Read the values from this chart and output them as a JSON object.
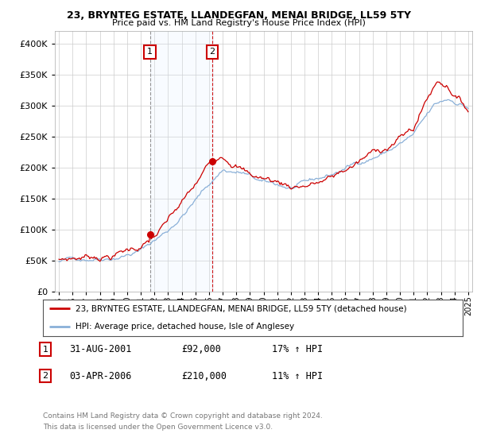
{
  "title": "23, BRYNTEG ESTATE, LLANDEGFAN, MENAI BRIDGE, LL59 5TY",
  "subtitle": "Price paid vs. HM Land Registry's House Price Index (HPI)",
  "legend_line1": "23, BRYNTEG ESTATE, LLANDEGFAN, MENAI BRIDGE, LL59 5TY (detached house)",
  "legend_line2": "HPI: Average price, detached house, Isle of Anglesey",
  "transaction1_label": "1",
  "transaction1_date": "31-AUG-2001",
  "transaction1_price": "£92,000",
  "transaction1_hpi": "17% ↑ HPI",
  "transaction1_x": 2001.667,
  "transaction1_y": 92000,
  "transaction2_label": "2",
  "transaction2_date": "03-APR-2006",
  "transaction2_price": "£210,000",
  "transaction2_hpi": "11% ↑ HPI",
  "transaction2_x": 2006.25,
  "transaction2_y": 210000,
  "hpi_color": "#8ab0d8",
  "price_color": "#cc0000",
  "background_color": "#ffffff",
  "grid_color": "#cccccc",
  "shade_color": "#ddeeff",
  "ylim_min": 0,
  "ylim_max": 420000,
  "xmin": 1994.7,
  "xmax": 2025.3,
  "yticks": [
    0,
    50000,
    100000,
    150000,
    200000,
    250000,
    300000,
    350000,
    400000
  ],
  "footnote1": "Contains HM Land Registry data © Crown copyright and database right 2024.",
  "footnote2": "This data is licensed under the Open Government Licence v3.0."
}
